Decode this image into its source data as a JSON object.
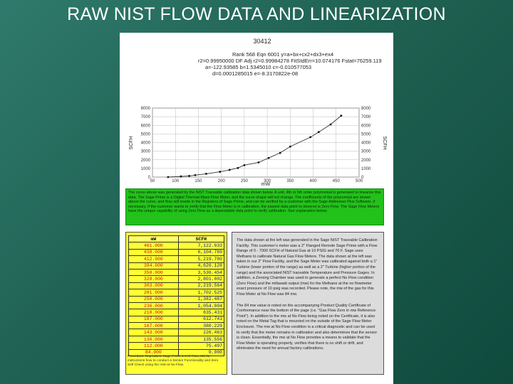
{
  "slide": {
    "title": "RAW NIST FLOW DATA AND LINEARIZATION"
  },
  "chart_data": {
    "type": "line",
    "title": "30412",
    "fit_lines": [
      "Rank 568  Eqn 6001  y=a+bx+cx2+dx3+ex4",
      "r2=0.99950000  DF Adj r2=0.99984278  FitStdErr=10.074176  Fstat=76259.119",
      "a=-122.93585  b=1.5345010  c=-0.010577053",
      "d=0.0001285015  e=-8.3170822e-08"
    ],
    "xlabel": "mW",
    "ylabel_left": "SCFH",
    "ylabel_right": "SCFH",
    "xlim": [
      50,
      500
    ],
    "ylim": [
      0,
      8000
    ],
    "x_ticks": [
      "50",
      "100",
      "150",
      "200",
      "250",
      "300",
      "350",
      "400",
      "450",
      "500"
    ],
    "y_ticks": [
      "0",
      "1000",
      "2000",
      "3000",
      "4000",
      "5000",
      "6000",
      "7000",
      "8000"
    ],
    "x": [
      84,
      112,
      130,
      143,
      167,
      197,
      218,
      236,
      250,
      281,
      303,
      328,
      350,
      394,
      412,
      438,
      461
    ],
    "y": [
      0,
      75.497,
      135.556,
      226.463,
      380.229,
      612.741,
      835.431,
      1054.004,
      1382.487,
      1702.525,
      2219.564,
      2801.002,
      3536.454,
      4626.128,
      5219.7,
      6104.789,
      7122.033
    ]
  },
  "notes": {
    "green": "The curve above was generated by the NIST Traceable calibration data shown below. A unit, 4th or 5th order polynomial is generated to linearize this data. The Sage Prime is a Digital Thermal Mass Flow Meter, and the curve shape will not change. The coefficients of the polynomial are shown above the curve, and they will reside in the Registers of Sage Prime, and can be verified by a customer with the Sage Addresser Plus Software, if necessary. If the customer wants to verify that the Flow Meter is in calibration, the easiest data point to observe is Zero Flow. The Sage Flow Meters have the unique capability of using Zero Flow as a dependable data point to verify calibration. See explanation below.",
    "procedure": "Procedure: Reproduce Sage Prime 0-0 M Flow, 00) for instructions how to conduct a Sensor Functionality and Zero Self Check using the mW at No Flow.",
    "right_1": "The data shown at the left was generated in the Sage NIST Traceable Calibration Facility. This customer's meter was a 2\" Flanged Remote Sage Prime with a Flow Range of 0 - 7000 SCFH of Natural Gas at 10 PSIG and 70 F. Sage uses Methane to calibrate Natural Gas Flow Meters. The data shown at the left was taken in our 2\" Flow Facility, and the Sage Meter was calibrated against both a 1\" Turbine (lower portion of the range) as well as a 2\" Turbine (higher portion of the range) and the associated NIST traceable Temperature and Pressure Gages. In addition, a Zeroing Chamber was used to generate a perfect No Flow condition (Zero Flow) and the millawatt output (mw) for the Methane at the no flowmeter exact pressure of 10 psig was recorded. Please note, the mw of the gas for this Flow Meter at No Flow was 84 mw.",
    "right_2": "The 84 mw value is noted on the accompanying Product Quality Certificate of Conformance near the bottom of the page (i.e. \"Gas Flow Zero in mw Reference Point\"). In addition to the mw at No Flow being noted on the Certificate, it is also noted on the Metal Tag that is mounted on the outside of the Sage Flow Meter Enclosure. The mw at No Flow condition is a critical diagnostic and can be used to verify that the meter remains in calibration and also determines that the sensor is clean. Essentially, the mw at No Flow provides a means to validate that the Flow Meter is operating properly, verifies that there is no shift or drift, and eliminates the need for annual factory calibrations."
  },
  "table": {
    "headers": [
      "mW",
      "SCFH"
    ],
    "rows": [
      [
        "461.000",
        "7,122.033"
      ],
      [
        "438.000",
        "6,104.789"
      ],
      [
        "412.000",
        "5,219.700"
      ],
      [
        "394.000",
        "4,626.128"
      ],
      [
        "350.000",
        "3,536.454"
      ],
      [
        "328.000",
        "2,801.002"
      ],
      [
        "303.000",
        "2,219.564"
      ],
      [
        "281.000",
        "1,702.525"
      ],
      [
        "250.000",
        "1,382.487"
      ],
      [
        "236.000",
        "1,054.004"
      ],
      [
        "218.000",
        "835.431"
      ],
      [
        "197.000",
        "612.741"
      ],
      [
        "167.000",
        "380.229"
      ],
      [
        "143.000",
        "226.463"
      ],
      [
        "130.000",
        "135.556"
      ],
      [
        "112.000",
        "75.497"
      ],
      [
        "84.000",
        "0.000"
      ]
    ]
  },
  "colors": {
    "background": "#1f6152",
    "note_green": "#22c21a",
    "table_yellow": "#ffff33",
    "mw_red": "#c81010",
    "scfh_blue": "#102090"
  }
}
